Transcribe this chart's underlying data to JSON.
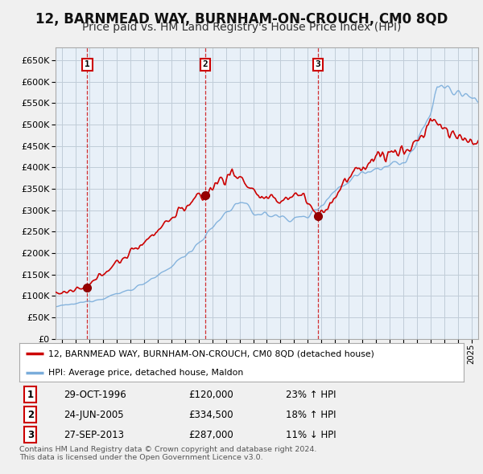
{
  "title": "12, BARNMEAD WAY, BURNHAM-ON-CROUCH, CM0 8QD",
  "subtitle": "Price paid vs. HM Land Registry's House Price Index (HPI)",
  "xlim_start": 1994.5,
  "xlim_end": 2025.5,
  "ylim": [
    0,
    680000
  ],
  "yticks": [
    0,
    50000,
    100000,
    150000,
    200000,
    250000,
    300000,
    350000,
    400000,
    450000,
    500000,
    550000,
    600000,
    650000
  ],
  "sale_dates": [
    1996.83,
    2005.48,
    2013.74
  ],
  "sale_prices": [
    120000,
    334500,
    287000
  ],
  "sale_labels": [
    "1",
    "2",
    "3"
  ],
  "sale_info": [
    {
      "num": "1",
      "date": "29-OCT-1996",
      "price": "£120,000",
      "hpi": "23% ↑ HPI"
    },
    {
      "num": "2",
      "date": "24-JUN-2005",
      "price": "£334,500",
      "hpi": "18% ↑ HPI"
    },
    {
      "num": "3",
      "date": "27-SEP-2013",
      "price": "£287,000",
      "hpi": "11% ↓ HPI"
    }
  ],
  "line_color_property": "#cc0000",
  "line_color_hpi": "#7aaddb",
  "background_color": "#f0f4f8",
  "plot_bg_color": "#e8f0f8",
  "grid_color": "#c0ccd8",
  "title_fontsize": 12,
  "subtitle_fontsize": 10,
  "legend_label_property": "12, BARNMEAD WAY, BURNHAM-ON-CROUCH, CM0 8QD (detached house)",
  "legend_label_hpi": "HPI: Average price, detached house, Maldon",
  "footer": "Contains HM Land Registry data © Crown copyright and database right 2024.\nThis data is licensed under the Open Government Licence v3.0."
}
